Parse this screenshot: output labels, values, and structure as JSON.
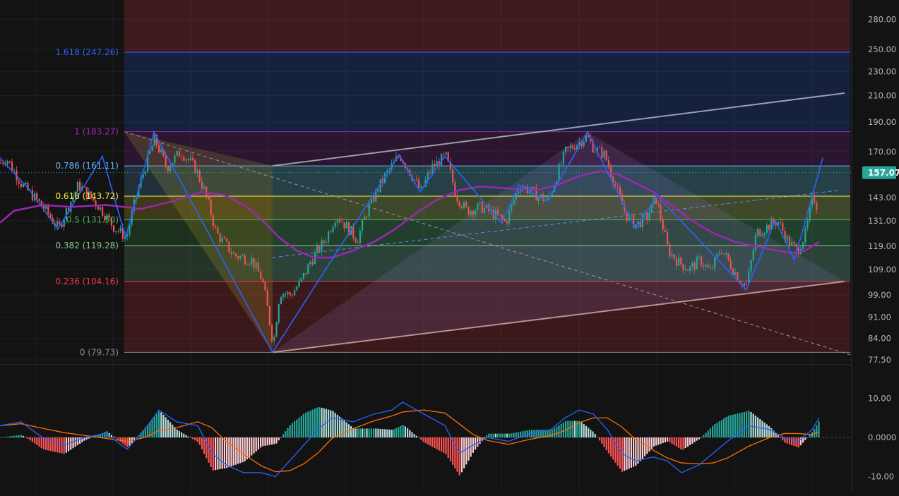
{
  "chart_data": {
    "type": "candlestick",
    "price_axis": {
      "scale": "log",
      "ticks": [
        "280.00",
        "250.00",
        "230.00",
        "210.00",
        "190.00",
        "170.00",
        "143.00",
        "131.00",
        "119.00",
        "109.00",
        "99.00",
        "91.00",
        "84.00",
        "77.50"
      ],
      "tick_values": [
        280,
        250,
        230,
        210,
        190,
        170,
        143,
        131,
        119,
        109,
        99,
        91,
        84,
        77.5
      ],
      "last_price_label": "157.07",
      "last_price": 157.07,
      "last_price_color": "#26a69a"
    },
    "fibonacci": [
      {
        "label": "0 (79.73)",
        "price": 79.73,
        "color": "#8a8a8a"
      },
      {
        "label": "0.236 (104.16)",
        "price": 104.16,
        "color": "#f23645"
      },
      {
        "label": "0.382 (119.28)",
        "price": 119.28,
        "color": "#81c784"
      },
      {
        "label": "0.5 (131.50)",
        "price": 131.5,
        "color": "#4caf50"
      },
      {
        "label": "0.618 (143.72)",
        "price": 143.72,
        "color": "#ffeb3b"
      },
      {
        "label": "0.786 (161.11)",
        "price": 161.11,
        "color": "#64b5f6"
      },
      {
        "label": "1 (183.27)",
        "price": 183.27,
        "color": "#9c27b0"
      },
      {
        "label": "1.618 (247.26)",
        "price": 247.26,
        "color": "#2962ff"
      }
    ],
    "oscillator": {
      "type": "macd",
      "ticks": [
        "10.00",
        "0.0000",
        "-10.00"
      ],
      "tick_values": [
        10,
        0,
        -10
      ],
      "line_color": "#2962ff",
      "signal_color": "#ff6d00",
      "hist_pos_colors": [
        "#26a69a",
        "#b2dfdb"
      ],
      "hist_neg_colors": [
        "#ff5252",
        "#ffcdd2"
      ]
    },
    "grid": true,
    "colors": {
      "up": "#26a69a",
      "down": "#ef5350",
      "moving_average": "#9c27b0",
      "zigzag": "#2962ff",
      "channel": "#b2b5be"
    }
  }
}
